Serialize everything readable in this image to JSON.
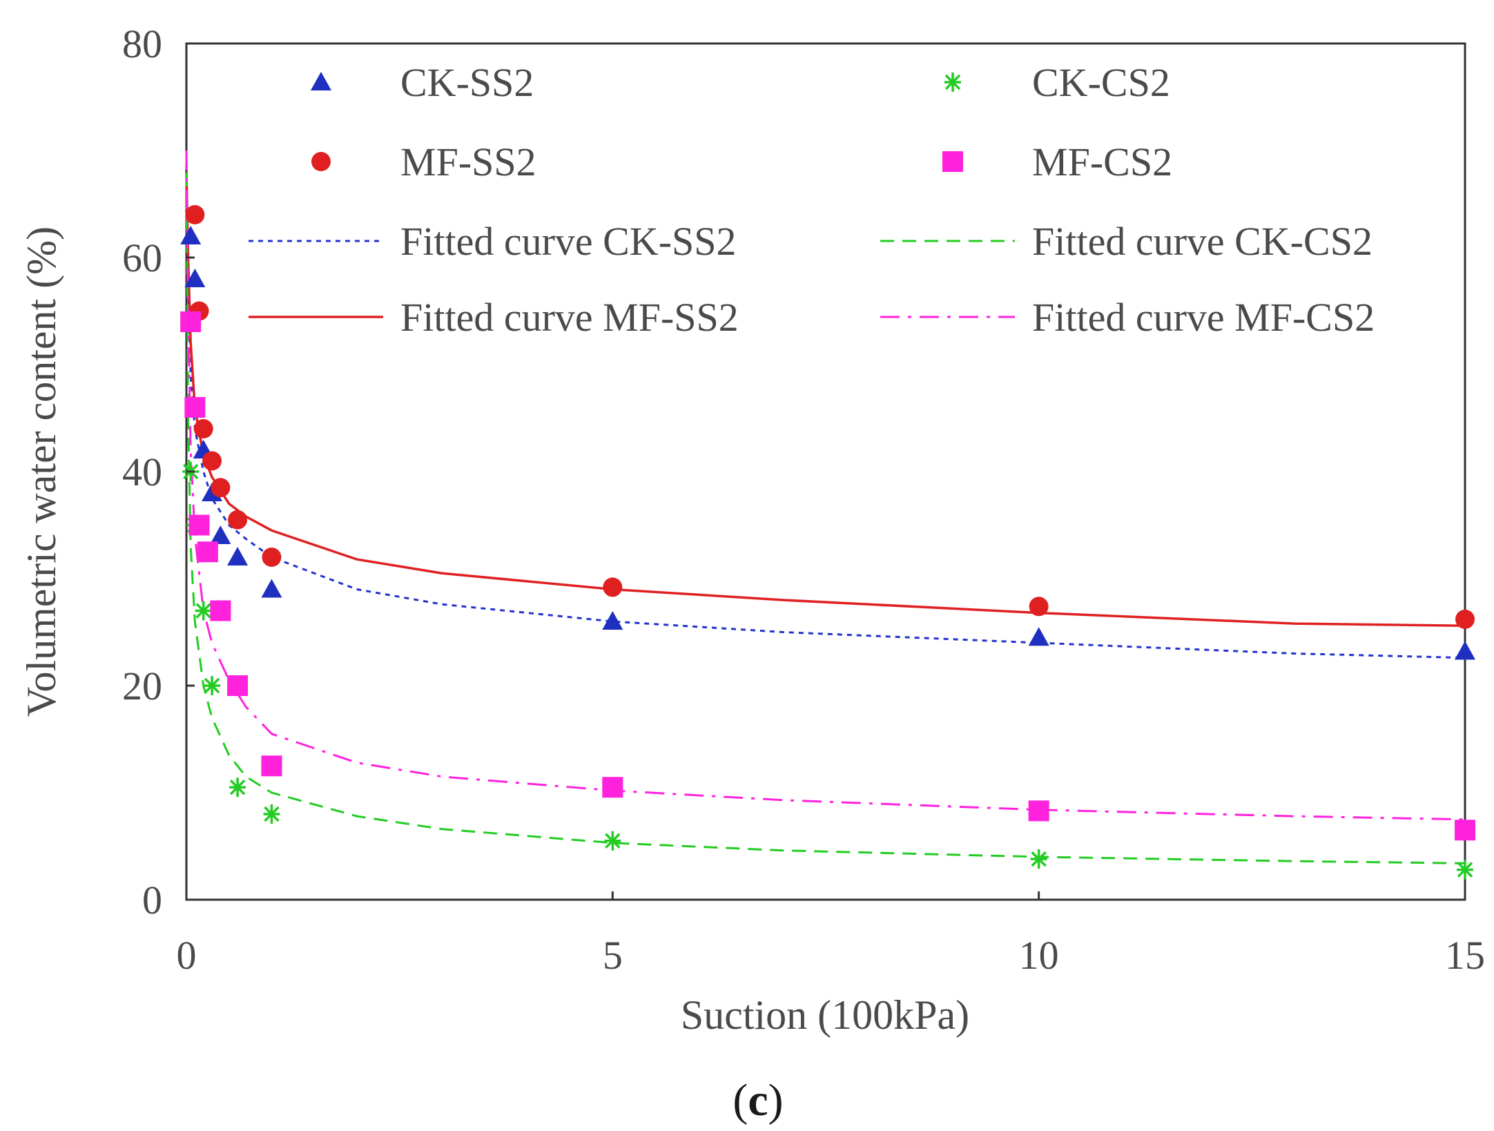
{
  "chart_data": {
    "type": "scatter",
    "title": "",
    "panel_label": {
      "open": "(",
      "letter": "c",
      "close": ")"
    },
    "xlabel": "Suction (100kPa)",
    "ylabel": "Volumetric water content (%)",
    "xlim": [
      0,
      15
    ],
    "ylim": [
      0,
      80
    ],
    "xticks": [
      0,
      5,
      10,
      15
    ],
    "yticks": [
      0,
      20,
      40,
      60,
      80
    ],
    "grid": false,
    "legend_position": "top",
    "series": [
      {
        "name": "CK-SS2",
        "marker": "triangle",
        "color": "#1f2fbf",
        "x": [
          0.05,
          0.1,
          0.2,
          0.3,
          0.4,
          0.6,
          1,
          5,
          10,
          15
        ],
        "y": [
          62,
          58,
          42,
          38,
          34,
          32,
          29,
          26,
          24.5,
          23.2
        ]
      },
      {
        "name": "MF-SS2",
        "marker": "circle",
        "color": "#e02020",
        "x": [
          0.1,
          0.15,
          0.2,
          0.3,
          0.4,
          0.6,
          1,
          5,
          10,
          15
        ],
        "y": [
          64,
          55,
          44,
          41,
          38.5,
          35.5,
          32,
          29.2,
          27.4,
          26.2
        ]
      },
      {
        "name": "CK-CS2",
        "marker": "star",
        "color": "#22cc22",
        "x": [
          0.05,
          0.1,
          0.2,
          0.3,
          0.6,
          1,
          5,
          10,
          15
        ],
        "y": [
          40,
          35,
          27,
          20,
          10.5,
          8,
          5.5,
          3.8,
          2.8
        ]
      },
      {
        "name": "MF-CS2",
        "marker": "square",
        "color": "#ff22dd",
        "x": [
          0.05,
          0.1,
          0.15,
          0.25,
          0.4,
          0.6,
          1,
          5,
          10,
          15
        ],
        "y": [
          54,
          46,
          35,
          32.5,
          27,
          20,
          12.5,
          10.5,
          8.3,
          6.5
        ]
      }
    ],
    "fitted_curves": [
      {
        "name": "Fitted curve CK-SS2",
        "style": "dotted",
        "color": "#2233cc",
        "x": [
          0,
          0.02,
          0.05,
          0.1,
          0.2,
          0.3,
          0.5,
          0.7,
          1,
          2,
          3,
          5,
          7,
          10,
          13,
          15
        ],
        "y": [
          66,
          58,
          49,
          44,
          40,
          37.5,
          35,
          33.7,
          32,
          29,
          27.6,
          26,
          25,
          24,
          23,
          22.6
        ]
      },
      {
        "name": "Fitted curve MF-SS2",
        "style": "solid",
        "color": "#e02020",
        "x": [
          0,
          0.02,
          0.05,
          0.1,
          0.2,
          0.3,
          0.5,
          0.7,
          1,
          2,
          3,
          5,
          7,
          10,
          13,
          15
        ],
        "y": [
          68,
          60,
          52,
          46,
          41.5,
          39.5,
          37,
          35.8,
          34.5,
          31.8,
          30.5,
          29,
          28,
          26.8,
          25.8,
          25.6
        ]
      },
      {
        "name": "Fitted curve CK-CS2",
        "style": "dashed",
        "color": "#22cc22",
        "x": [
          0,
          0.02,
          0.05,
          0.1,
          0.2,
          0.3,
          0.5,
          0.7,
          1,
          2,
          3,
          5,
          7,
          10,
          13,
          15
        ],
        "y": [
          70,
          45,
          33,
          26,
          20,
          17,
          13.5,
          11.5,
          10,
          7.8,
          6.6,
          5.3,
          4.6,
          4,
          3.6,
          3.4
        ]
      },
      {
        "name": "Fitted curve MF-CS2",
        "style": "dash-dot",
        "color": "#ff22dd",
        "x": [
          0,
          0.02,
          0.05,
          0.1,
          0.2,
          0.3,
          0.5,
          0.7,
          1,
          2,
          3,
          5,
          7,
          10,
          13,
          15
        ],
        "y": [
          70,
          55,
          42,
          34,
          27,
          24,
          20.5,
          18,
          15.5,
          12.8,
          11.5,
          10.2,
          9.3,
          8.4,
          7.8,
          7.5
        ]
      }
    ]
  }
}
